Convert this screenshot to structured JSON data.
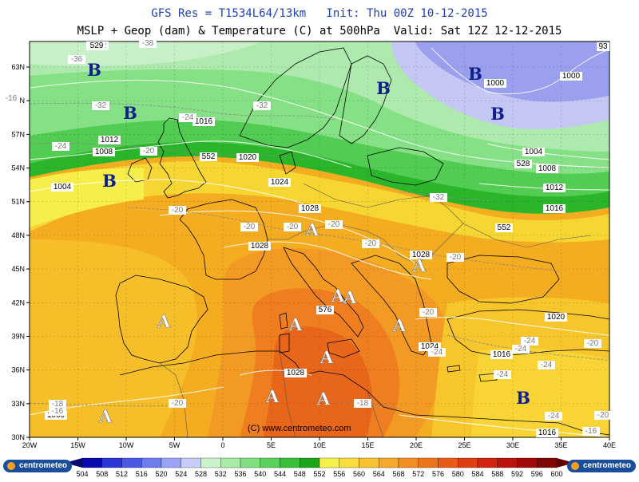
{
  "header": {
    "line1": "GFS Res = T1534L64/13km   Init: Thu 00Z 10-12-2015",
    "line2": "MSLP + Geop (dam) & Temperature (C) at 500hPa  Valid: Sat 12Z 12-12-2015"
  },
  "axes": {
    "lon_labels": [
      "20W",
      "15W",
      "10W",
      "5W",
      "0",
      "5E",
      "10E",
      "15E",
      "20E",
      "25E",
      "30E",
      "35E",
      "40E"
    ],
    "lat_labels": [
      "63N",
      "60N",
      "57N",
      "54N",
      "51N",
      "48N",
      "45N",
      "42N",
      "39N",
      "36N",
      "33N",
      "30N"
    ]
  },
  "copyright": "(C) www.centrometeo.com",
  "colorbar": {
    "labels": [
      "504",
      "508",
      "512",
      "516",
      "520",
      "524",
      "528",
      "532",
      "536",
      "540",
      "544",
      "548",
      "552",
      "556",
      "560",
      "564",
      "568",
      "572",
      "576",
      "580",
      "584",
      "588",
      "592",
      "596",
      "600"
    ],
    "colors": [
      "#0a0ab0",
      "#2a36d8",
      "#4a5ae6",
      "#6e7cee",
      "#9aa2f4",
      "#c8ccf6",
      "#ccf2cc",
      "#a6eca6",
      "#7ee07e",
      "#58d258",
      "#38c038",
      "#1aa61a",
      "#f6f14a",
      "#fadc3a",
      "#f8c230",
      "#f6a828",
      "#f28e22",
      "#ee741c",
      "#e85a16",
      "#e03e12",
      "#d2240e",
      "#bc120c",
      "#a0080a",
      "#800606"
    ],
    "below_color": "#0a0a70",
    "above_color": "#600404"
  },
  "logo_left": "centrometeo",
  "logo_right": "centrometeo",
  "pressure_labels": [
    {
      "text": "1000",
      "c": [
        70,
        "523"
      ]
    },
    {
      "text": "1000",
      "c": [
        620,
        "107"
      ]
    },
    {
      "text": "1000",
      "c": [
        715,
        "98"
      ]
    },
    {
      "text": "1016",
      "c": [
        255,
        "155"
      ]
    },
    {
      "text": "1012",
      "c": [
        137,
        "178"
      ]
    },
    {
      "text": "1008",
      "c": [
        130,
        "193"
      ]
    },
    {
      "text": "1020",
      "c": [
        310,
        "200"
      ]
    },
    {
      "text": "1004",
      "c": [
        78,
        "237"
      ]
    },
    {
      "text": "1024",
      "c": [
        350,
        "231"
      ]
    },
    {
      "text": "1028",
      "c": [
        388,
        "264"
      ]
    },
    {
      "text": "1028",
      "c": [
        325,
        "311"
      ]
    },
    {
      "text": "1028",
      "c": [
        527,
        "322"
      ]
    },
    {
      "text": "1024",
      "c": [
        538,
        "437"
      ]
    },
    {
      "text": "1016",
      "c": [
        628,
        "447"
      ]
    },
    {
      "text": "1028",
      "c": [
        370,
        "470"
      ]
    },
    {
      "text": "1020",
      "c": [
        696,
        "400"
      ]
    },
    {
      "text": "1004",
      "c": [
        668,
        "193"
      ]
    },
    {
      "text": "1008",
      "c": [
        685,
        "214"
      ]
    },
    {
      "text": "1012",
      "c": [
        694,
        "238"
      ]
    },
    {
      "text": "1016",
      "c": [
        694,
        "264"
      ]
    },
    {
      "text": "1016",
      "c": [
        685,
        "545"
      ]
    },
    {
      "text": "1012",
      "c": [
        122,
        "60"
      ]
    }
  ],
  "geop_labels": [
    {
      "text": "529",
      "c": [
        121,
        "60"
      ]
    },
    {
      "text": "552",
      "c": [
        261,
        "199"
      ]
    },
    {
      "text": "552",
      "c": [
        631,
        "288"
      ]
    },
    {
      "text": "528",
      "c": [
        655,
        "208"
      ]
    },
    {
      "text": "576",
      "c": [
        407,
        "391"
      ]
    },
    {
      "text": "93",
      "c": [
        755,
        "61"
      ]
    }
  ],
  "temp_labels": [
    {
      "text": "-36",
      "c": [
        96,
        "77"
      ]
    },
    {
      "text": "-38",
      "c": [
        185,
        "57"
      ]
    },
    {
      "text": "-32",
      "c": [
        126,
        "135"
      ]
    },
    {
      "text": "-32",
      "c": [
        328,
        "135"
      ]
    },
    {
      "text": "-24",
      "c": [
        235,
        "150"
      ]
    },
    {
      "text": "-24",
      "c": [
        76,
        "186"
      ]
    },
    {
      "text": "-20",
      "c": [
        186,
        "192"
      ]
    },
    {
      "text": "-20",
      "c": [
        222,
        "266"
      ]
    },
    {
      "text": "-20",
      "c": [
        312,
        "287"
      ]
    },
    {
      "text": "-20",
      "c": [
        366,
        "287"
      ]
    },
    {
      "text": "-20",
      "c": [
        418,
        "284"
      ]
    },
    {
      "text": "-20",
      "c": [
        464,
        "308"
      ]
    },
    {
      "text": "-20",
      "c": [
        570,
        "325"
      ]
    },
    {
      "text": "-20",
      "c": [
        536,
        "394"
      ]
    },
    {
      "text": "-32",
      "c": [
        549,
        "250"
      ]
    },
    {
      "text": "-24",
      "c": [
        663,
        "430"
      ]
    },
    {
      "text": "-24",
      "c": [
        652,
        "440"
      ]
    },
    {
      "text": "-20",
      "c": [
        742,
        "433"
      ]
    },
    {
      "text": "-24",
      "c": [
        684,
        "460"
      ]
    },
    {
      "text": "-24",
      "c": [
        629,
        "472"
      ]
    },
    {
      "text": "-24",
      "c": [
        547,
        "444"
      ]
    },
    {
      "text": "-20",
      "c": [
        222,
        "508"
      ]
    },
    {
      "text": "-18",
      "c": [
        72,
        "509"
      ]
    },
    {
      "text": "-16",
      "c": [
        72,
        "518"
      ]
    },
    {
      "text": "-18",
      "c": [
        454,
        "508"
      ]
    },
    {
      "text": "-24",
      "c": [
        693,
        "524"
      ]
    },
    {
      "text": "-16",
      "c": [
        740,
        "543"
      ]
    },
    {
      "text": "-20",
      "c": [
        755,
        "523"
      ]
    },
    {
      "text": "-16",
      "c": [
        14,
        "126"
      ]
    }
  ],
  "high_markers": [
    "A",
    "A",
    "A",
    "A",
    "A",
    "A",
    "A",
    "A",
    "A",
    "A",
    "A"
  ],
  "low_markers": [
    "B",
    "B",
    "B",
    "B",
    "B",
    "B",
    "B"
  ]
}
